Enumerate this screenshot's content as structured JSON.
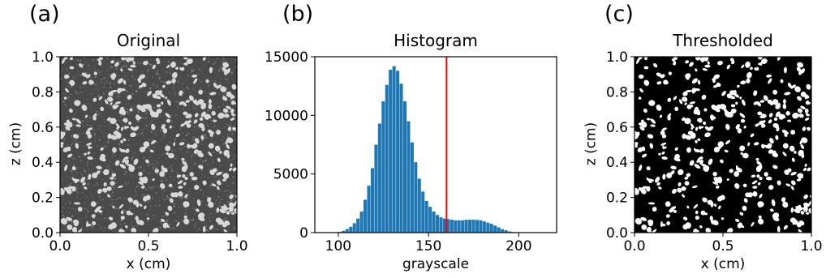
{
  "panels": {
    "a": {
      "letter": "(a)",
      "title": "Original",
      "xlabel": "x (cm)",
      "ylabel": "z (cm)"
    },
    "b": {
      "letter": "(b)",
      "title": "Histogram",
      "xlabel": "grayscale",
      "ylabel": ""
    },
    "c": {
      "letter": "(c)",
      "title": "Thresholded",
      "xlabel": "x (cm)",
      "ylabel": "z (cm)"
    }
  },
  "chart_data": [
    {
      "type": "heatmap",
      "title": "Original",
      "xlabel": "x (cm)",
      "ylabel": "z (cm)",
      "xlim": [
        0.0,
        1.0
      ],
      "ylim": [
        0.0,
        1.0
      ],
      "xticks": [
        "0.0",
        "0.5",
        "1.0"
      ],
      "yticks": [
        "0.0",
        "0.2",
        "0.4",
        "0.6",
        "0.8",
        "1.0"
      ],
      "colormap": "gray",
      "background_color": "#4a4a4a",
      "grain_color": "#d8d8d8"
    },
    {
      "type": "bar",
      "title": "Histogram",
      "xlabel": "grayscale",
      "ylabel": "",
      "xlim": [
        87,
        221
      ],
      "ylim": [
        0,
        15000
      ],
      "xticks": [
        "100",
        "150",
        "200"
      ],
      "yticks": [
        "0",
        "5000",
        "10000",
        "15000"
      ],
      "bar_color": "#1f77b4",
      "threshold": {
        "value": 160,
        "color": "#ff0000"
      },
      "x": [
        100,
        102,
        104,
        106,
        108,
        110,
        112,
        114,
        116,
        118,
        120,
        122,
        124,
        126,
        128,
        130,
        132,
        134,
        136,
        138,
        140,
        142,
        144,
        146,
        148,
        150,
        152,
        154,
        156,
        158,
        160,
        162,
        164,
        166,
        168,
        170,
        172,
        174,
        176,
        178,
        180,
        182,
        184,
        186,
        188,
        190,
        192,
        194,
        196,
        198,
        200,
        202
      ],
      "values": [
        50,
        150,
        300,
        500,
        800,
        1200,
        1800,
        2800,
        4000,
        5500,
        7500,
        9300,
        11200,
        12600,
        13900,
        14200,
        13800,
        12700,
        11200,
        9500,
        7700,
        6000,
        4600,
        3500,
        2700,
        2200,
        1800,
        1500,
        1300,
        1200,
        1150,
        1100,
        1050,
        1050,
        1050,
        1100,
        1100,
        1100,
        1080,
        1050,
        950,
        850,
        750,
        600,
        450,
        300,
        200,
        100,
        50,
        30,
        10,
        0
      ]
    },
    {
      "type": "heatmap",
      "title": "Thresholded",
      "xlabel": "x (cm)",
      "ylabel": "z (cm)",
      "xlim": [
        0.0,
        1.0
      ],
      "ylim": [
        0.0,
        1.0
      ],
      "xticks": [
        "0.0",
        "0.5",
        "1.0"
      ],
      "yticks": [
        "0.0",
        "0.2",
        "0.4",
        "0.6",
        "0.8",
        "1.0"
      ],
      "colormap": "binary",
      "background_color": "#000000",
      "grain_color": "#ffffff"
    }
  ]
}
